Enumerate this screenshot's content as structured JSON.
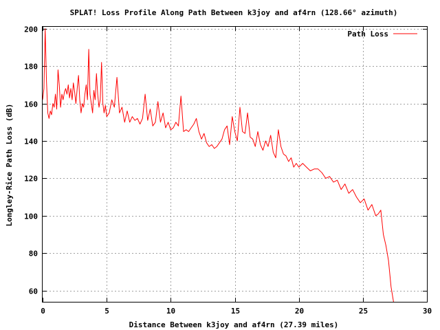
{
  "chart_data": {
    "type": "line",
    "title": "SPLAT! Loss Profile Along Path Between k3joy and af4rn (128.66° azimuth)",
    "xlabel": "Distance Between k3joy and af4rn (27.39 miles)",
    "ylabel": "Longley-Rice Path Loss (dB)",
    "xlim": [
      0,
      30
    ],
    "ylim": [
      54,
      201
    ],
    "x_ticks": [
      0,
      5,
      10,
      15,
      20,
      25,
      30
    ],
    "x_tick_labels": [
      "0",
      "5",
      "10",
      "15",
      "20",
      "25",
      "30"
    ],
    "y_ticks": [
      60,
      80,
      100,
      120,
      140,
      160,
      180,
      200
    ],
    "y_tick_labels": [
      "60",
      "80",
      "100",
      "120",
      "140",
      "160",
      "180",
      "200"
    ],
    "grid": true,
    "legend_position": "top-right",
    "series": [
      {
        "name": "Path Loss",
        "color": "#ff0000",
        "x": [
          0,
          0.1,
          0.2,
          0.3,
          0.4,
          0.5,
          0.6,
          0.7,
          0.8,
          0.9,
          1.0,
          1.1,
          1.2,
          1.3,
          1.4,
          1.5,
          1.6,
          1.7,
          1.8,
          1.9,
          2.0,
          2.1,
          2.2,
          2.3,
          2.4,
          2.5,
          2.6,
          2.7,
          2.8,
          2.9,
          3.0,
          3.1,
          3.2,
          3.3,
          3.4,
          3.5,
          3.6,
          3.7,
          3.8,
          3.9,
          4.0,
          4.1,
          4.2,
          4.3,
          4.4,
          4.5,
          4.6,
          4.7,
          4.8,
          4.9,
          5.0,
          5.2,
          5.4,
          5.6,
          5.8,
          6.0,
          6.2,
          6.4,
          6.6,
          6.8,
          7.0,
          7.2,
          7.4,
          7.6,
          7.8,
          8.0,
          8.2,
          8.4,
          8.6,
          8.8,
          9.0,
          9.2,
          9.4,
          9.6,
          9.8,
          10.0,
          10.2,
          10.4,
          10.6,
          10.8,
          11.0,
          11.2,
          11.4,
          11.6,
          11.8,
          12.0,
          12.2,
          12.4,
          12.6,
          12.8,
          13.0,
          13.2,
          13.4,
          13.6,
          13.8,
          14.0,
          14.2,
          14.4,
          14.6,
          14.8,
          15.0,
          15.2,
          15.4,
          15.6,
          15.8,
          16.0,
          16.2,
          16.4,
          16.6,
          16.8,
          17.0,
          17.2,
          17.4,
          17.6,
          17.8,
          18.0,
          18.2,
          18.4,
          18.6,
          18.8,
          19.0,
          19.2,
          19.4,
          19.6,
          19.8,
          20.0,
          20.3,
          20.6,
          20.9,
          21.2,
          21.5,
          21.8,
          22.1,
          22.4,
          22.7,
          23.0,
          23.3,
          23.6,
          23.9,
          24.2,
          24.5,
          24.8,
          25.1,
          25.4,
          25.7,
          26.0,
          26.2,
          26.4,
          26.6,
          26.8,
          27.0,
          27.2,
          27.39
        ],
        "y": [
          162,
          168,
          200,
          172,
          155,
          152,
          156,
          154,
          160,
          158,
          165,
          157,
          178,
          170,
          158,
          165,
          162,
          166,
          168,
          165,
          170,
          163,
          168,
          162,
          171,
          166,
          160,
          168,
          175,
          162,
          155,
          160,
          158,
          165,
          170,
          162,
          189,
          165,
          160,
          155,
          167,
          162,
          176,
          165,
          158,
          162,
          182,
          160,
          155,
          159,
          153,
          155,
          162,
          158,
          174,
          155,
          158,
          150,
          156,
          150,
          153,
          151,
          152,
          149,
          152,
          165,
          151,
          157,
          148,
          150,
          161,
          150,
          155,
          147,
          150,
          146,
          147,
          150,
          148,
          164,
          145,
          146,
          145,
          147,
          149,
          152,
          145,
          141,
          144,
          139,
          137,
          138,
          136,
          137,
          139,
          141,
          146,
          148,
          138,
          153,
          145,
          140,
          158,
          145,
          144,
          155,
          142,
          141,
          137,
          145,
          138,
          135,
          140,
          137,
          143,
          134,
          131,
          146,
          137,
          133,
          132,
          129,
          131,
          126,
          128,
          126,
          128,
          126,
          124,
          125,
          125,
          123,
          120,
          121,
          118,
          119,
          114,
          117,
          112,
          114,
          110,
          107,
          109,
          103,
          106,
          100,
          101,
          103,
          90,
          84,
          76,
          62,
          54
        ]
      }
    ]
  }
}
